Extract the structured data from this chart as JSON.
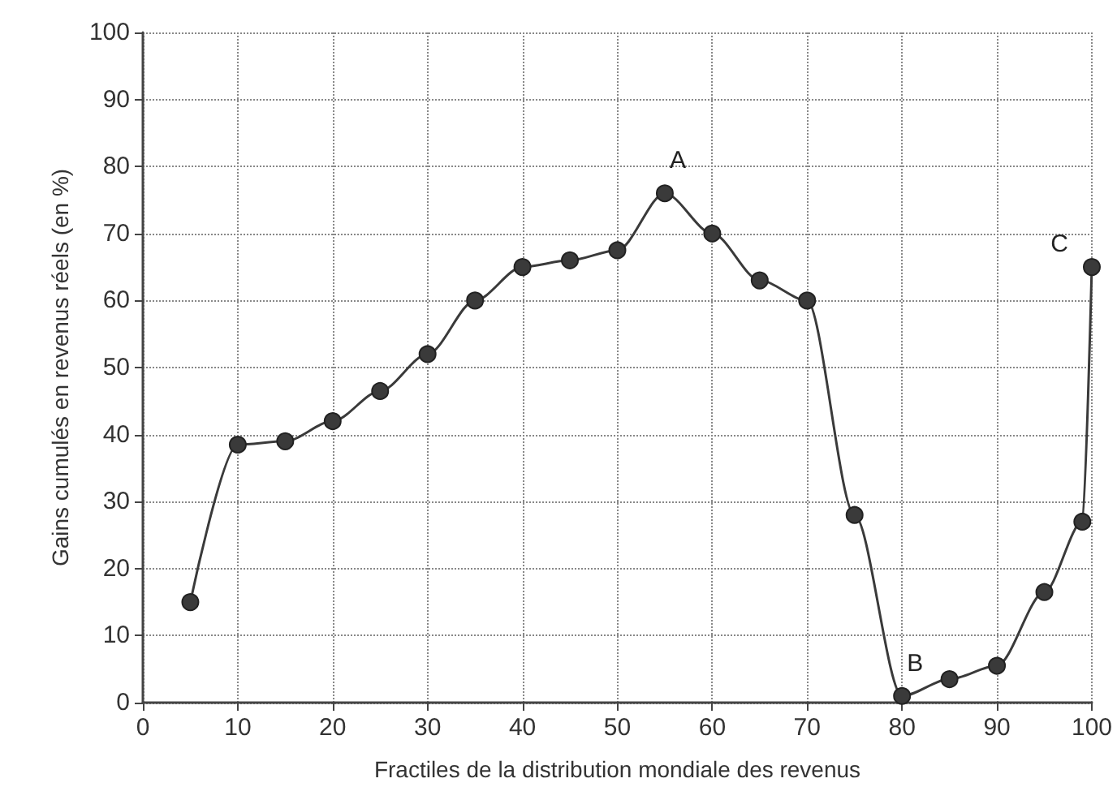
{
  "chart_data": {
    "type": "line",
    "xlabel": "Fractiles de la distribution mondiale des revenus",
    "ylabel": "Gains cumulés en revenus réels (en %)",
    "x": [
      5,
      10,
      15,
      20,
      25,
      30,
      35,
      40,
      45,
      50,
      55,
      60,
      65,
      70,
      75,
      80,
      85,
      90,
      95,
      99,
      100
    ],
    "series": [
      {
        "color": "#3a3a3a",
        "values": [
          15,
          38.5,
          39,
          42,
          46.5,
          52,
          60,
          65,
          66,
          67.5,
          76,
          70,
          63,
          60,
          28,
          1,
          3.5,
          5.5,
          16.5,
          27,
          65
        ]
      }
    ],
    "xlim": [
      0,
      100
    ],
    "xticks": [
      0,
      10,
      20,
      30,
      40,
      50,
      60,
      70,
      80,
      90,
      100
    ],
    "ylim": [
      0,
      100
    ],
    "yticks": [
      0,
      10,
      20,
      30,
      40,
      50,
      60,
      70,
      80,
      90,
      100
    ],
    "grid": true,
    "marker": "circle",
    "line_style": "solid",
    "annotations": [
      {
        "text": "A",
        "x": 55,
        "y": 76
      },
      {
        "text": "B",
        "x": 80,
        "y": 1
      },
      {
        "text": "C",
        "x": 100,
        "y": 65
      }
    ]
  }
}
